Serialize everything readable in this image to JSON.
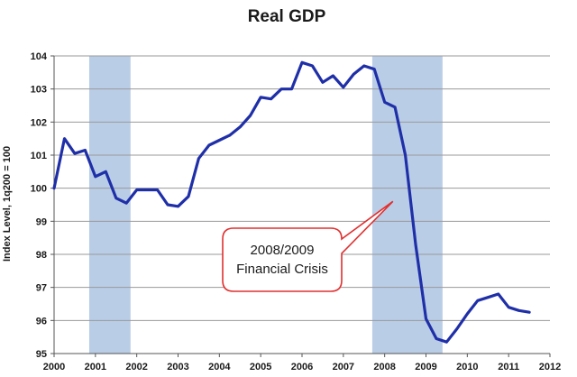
{
  "chart_data": {
    "type": "line",
    "title": "Real GDP",
    "ylabel": "Index Level, 1q200 = 100",
    "xlabel": "",
    "xlim": [
      2000,
      2012
    ],
    "ylim": [
      95,
      104
    ],
    "x_ticks": [
      "2000",
      "2001",
      "2002",
      "2003",
      "2004",
      "2005",
      "2006",
      "2007",
      "2008",
      "2009",
      "2010",
      "2011",
      "2012"
    ],
    "y_ticks": [
      "95",
      "96",
      "97",
      "98",
      "99",
      "100",
      "101",
      "102",
      "103",
      "104"
    ],
    "grid": "horizontal",
    "recessions": [
      {
        "start": 2000.85,
        "end": 2001.85
      },
      {
        "start": 2007.7,
        "end": 2009.4
      }
    ],
    "annotation": {
      "lines": [
        "2008/2009",
        "Financial Crisis"
      ],
      "points_to": {
        "x": 2008.2,
        "y": 99.6
      }
    },
    "series": [
      {
        "color": "#1f2fa8",
        "points": [
          [
            2000.0,
            100.0
          ],
          [
            2000.25,
            101.5
          ],
          [
            2000.5,
            101.05
          ],
          [
            2000.75,
            101.15
          ],
          [
            2001.0,
            100.35
          ],
          [
            2001.25,
            100.5
          ],
          [
            2001.5,
            99.7
          ],
          [
            2001.75,
            99.55
          ],
          [
            2002.0,
            99.95
          ],
          [
            2002.25,
            99.95
          ],
          [
            2002.5,
            99.95
          ],
          [
            2002.75,
            99.5
          ],
          [
            2003.0,
            99.45
          ],
          [
            2003.25,
            99.75
          ],
          [
            2003.5,
            100.9
          ],
          [
            2003.75,
            101.3
          ],
          [
            2004.0,
            101.45
          ],
          [
            2004.25,
            101.6
          ],
          [
            2004.5,
            101.85
          ],
          [
            2004.75,
            102.2
          ],
          [
            2005.0,
            102.75
          ],
          [
            2005.25,
            102.7
          ],
          [
            2005.5,
            103.0
          ],
          [
            2005.75,
            103.0
          ],
          [
            2006.0,
            103.8
          ],
          [
            2006.25,
            103.7
          ],
          [
            2006.5,
            103.2
          ],
          [
            2006.75,
            103.4
          ],
          [
            2007.0,
            103.05
          ],
          [
            2007.25,
            103.45
          ],
          [
            2007.5,
            103.7
          ],
          [
            2007.75,
            103.6
          ],
          [
            2008.0,
            102.6
          ],
          [
            2008.25,
            102.45
          ],
          [
            2008.5,
            101.0
          ],
          [
            2008.75,
            98.3
          ],
          [
            2009.0,
            96.05
          ],
          [
            2009.25,
            95.45
          ],
          [
            2009.5,
            95.35
          ],
          [
            2009.75,
            95.75
          ],
          [
            2010.0,
            96.2
          ],
          [
            2010.25,
            96.6
          ],
          [
            2010.5,
            96.7
          ],
          [
            2010.75,
            96.8
          ],
          [
            2011.0,
            96.4
          ],
          [
            2011.25,
            96.3
          ],
          [
            2011.5,
            96.25
          ]
        ]
      }
    ]
  }
}
